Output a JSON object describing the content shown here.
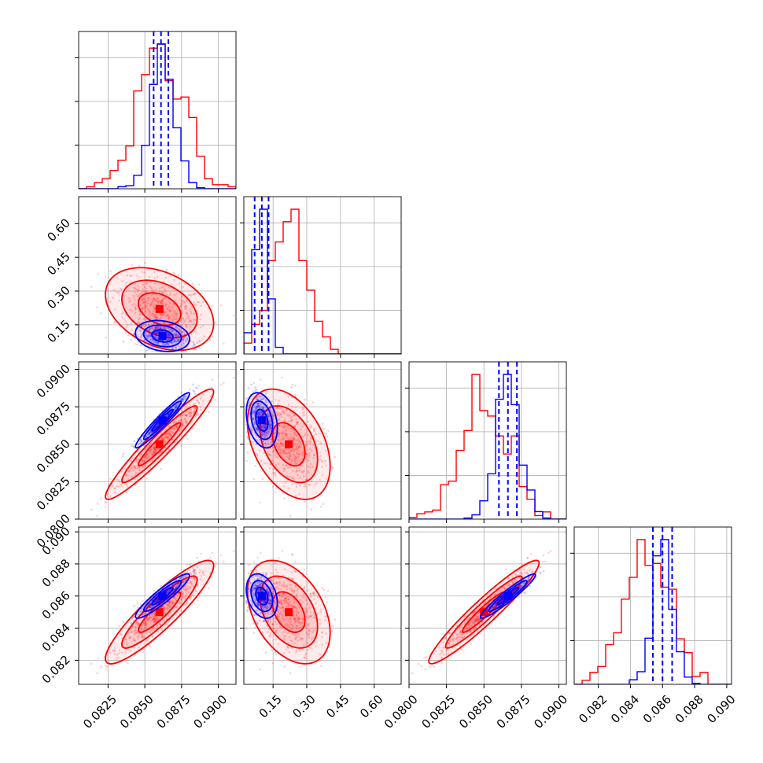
{
  "colors": {
    "series_a": "#ff0000",
    "series_b": "#0000ff",
    "grid": "#b0b0b0",
    "axis": "#000000"
  },
  "chart_data": {
    "type": "corner",
    "title": "",
    "n_params": 4,
    "grid": true,
    "param_ranges": [
      [
        0.0805,
        0.0912
      ],
      [
        0.02,
        0.72
      ],
      [
        0.08,
        0.0905
      ],
      [
        0.0805,
        0.0903
      ]
    ],
    "tick_labels": [
      [
        0.0825,
        0.085,
        0.0875,
        0.09
      ],
      [
        0.15,
        0.3,
        0.45,
        0.6
      ],
      [
        0.08,
        0.0825,
        0.085,
        0.0875,
        0.09
      ],
      [
        0.082,
        0.084,
        0.086,
        0.088,
        0.09
      ]
    ],
    "tick_label_text": [
      [
        "0.0825",
        "0.0850",
        "0.0875",
        "0.0900"
      ],
      [
        "0.15",
        "0.30",
        "0.45",
        "0.60"
      ],
      [
        "0.0800",
        "0.0825",
        "0.0850",
        "0.0875",
        "0.0900"
      ],
      [
        "0.082",
        "0.084",
        "0.086",
        "0.088",
        "0.090"
      ]
    ],
    "series": [
      {
        "color": "#ff0000",
        "mean": [
          0.086,
          0.22,
          0.085,
          0.085
        ],
        "sd": [
          0.0016,
          0.08,
          0.0016,
          0.0014
        ],
        "corr": [
          [
            1,
            -0.35,
            0.95,
            0.9
          ],
          [
            -0.35,
            1,
            -0.4,
            -0.4
          ],
          [
            0.95,
            -0.4,
            1,
            0.95
          ],
          [
            0.9,
            -0.4,
            0.95,
            1
          ]
        ]
      },
      {
        "color": "#0000ff",
        "mean": [
          0.0862,
          0.1,
          0.0866,
          0.086
        ],
        "sd": [
          0.0008,
          0.03,
          0.0008,
          0.0006
        ],
        "corr": [
          [
            1,
            -0.2,
            0.96,
            0.92
          ],
          [
            -0.2,
            1,
            -0.3,
            -0.3
          ],
          [
            0.96,
            -0.3,
            1,
            0.95
          ],
          [
            0.92,
            -0.3,
            0.95,
            1
          ]
        ]
      }
    ],
    "quantile_lines": [
      [
        0.0856,
        0.0861,
        0.0866
      ],
      [
        0.068,
        0.1,
        0.13
      ],
      [
        0.086,
        0.0866,
        0.0872
      ],
      [
        0.0854,
        0.086,
        0.0866
      ]
    ]
  }
}
